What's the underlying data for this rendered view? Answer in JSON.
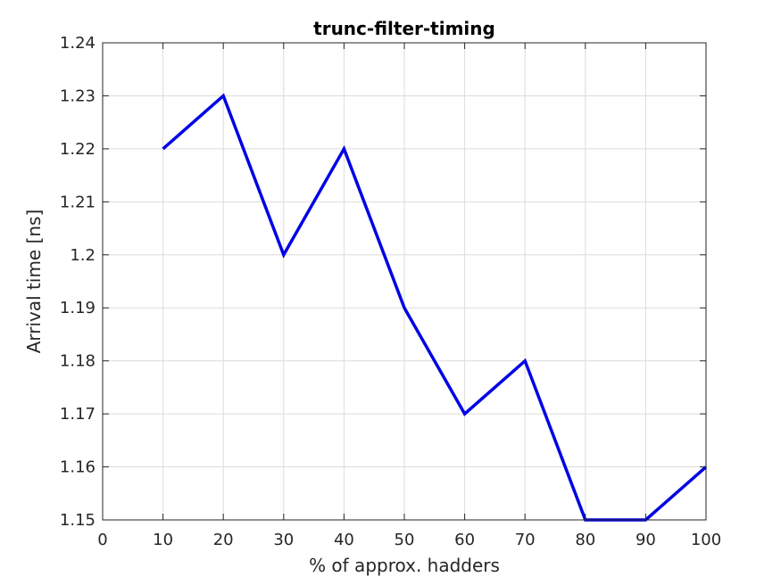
{
  "chart_data": {
    "type": "line",
    "title": "trunc-filter-timing",
    "xlabel": "% of approx. hadders",
    "ylabel": "Arrival time [ns]",
    "xlim": [
      0,
      100
    ],
    "ylim": [
      1.15,
      1.24
    ],
    "xticks": [
      "0",
      "10",
      "20",
      "30",
      "40",
      "50",
      "60",
      "70",
      "80",
      "90",
      "100"
    ],
    "yticks": [
      "1.15",
      "1.16",
      "1.17",
      "1.18",
      "1.19",
      "1.2",
      "1.21",
      "1.22",
      "1.23",
      "1.24"
    ],
    "grid": true,
    "series": [
      {
        "color": "#0000e6",
        "x": [
          10,
          20,
          30,
          40,
          50,
          60,
          70,
          80,
          90,
          100
        ],
        "y": [
          1.22,
          1.23,
          1.2,
          1.22,
          1.19,
          1.17,
          1.18,
          1.15,
          1.15,
          1.16
        ]
      }
    ]
  }
}
